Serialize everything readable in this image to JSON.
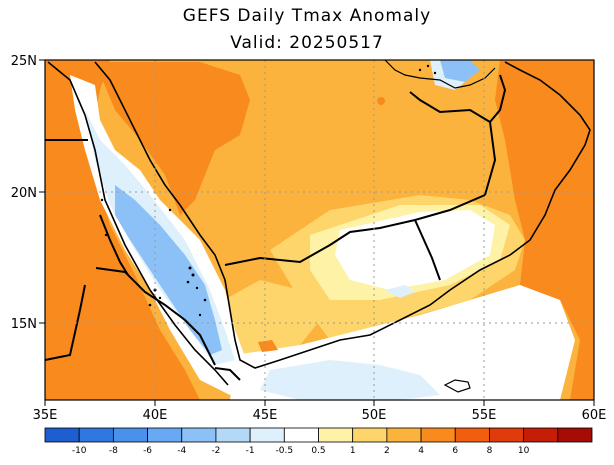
{
  "title": "GEFS Daily Tmax Anomaly",
  "valid": "Valid: 20250517",
  "axes": {
    "x_ticks": [
      "35E",
      "40E",
      "45E",
      "50E",
      "55E",
      "60E"
    ],
    "y_ticks": [
      "25N",
      "20N",
      "15N"
    ]
  },
  "colorbar": {
    "labels": [
      "-10",
      "-8",
      "-6",
      "-4",
      "-2",
      "-1",
      "-0.5",
      "0.5",
      "1",
      "2",
      "4",
      "6",
      "8",
      "10"
    ],
    "colors": [
      "#1d5fd1",
      "#2f78e0",
      "#4a91ec",
      "#69a9f3",
      "#8bc1f6",
      "#b3d8f8",
      "#def0fb",
      "#ffffff",
      "#fdf2a6",
      "#fdd56b",
      "#fbb33d",
      "#f98a1e",
      "#f25e0f",
      "#e03b0b",
      "#c41e07",
      "#a50c05"
    ]
  },
  "palette": {
    "orange": "#fbb33d",
    "dark_orange": "#f98a1e",
    "light_yellow": "#fdd56b",
    "pale_yellow": "#fdf2a6",
    "pale_blue": "#def0fb",
    "light_blue": "#b3d8f8",
    "blue": "#8bc1f6",
    "white": "#ffffff"
  }
}
